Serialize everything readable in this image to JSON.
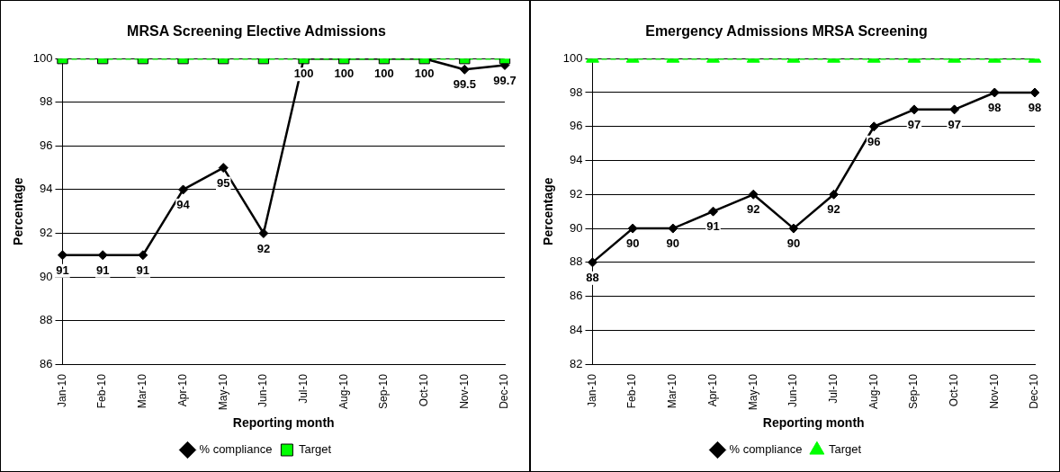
{
  "chart_data": [
    {
      "type": "line",
      "title": "MRSA Screening Elective Admissions",
      "xlabel": "Reporting month",
      "ylabel": "Percentage",
      "categories": [
        "Jan-10",
        "Feb-10",
        "Mar-10",
        "Apr-10",
        "May-10",
        "Jun-10",
        "Jul-10",
        "Aug-10",
        "Sep-10",
        "Oct-10",
        "Nov-10",
        "Dec-10"
      ],
      "series": [
        {
          "name": "% compliance",
          "color": "#000000",
          "marker": "diamond",
          "line_style": "solid",
          "values": [
            91,
            91,
            91,
            94,
            95,
            92,
            100,
            100,
            100,
            100,
            99.5,
            99.7
          ],
          "value_labels": [
            "91",
            "91",
            "91",
            "94",
            "95",
            "92",
            "100",
            "100",
            "100",
            "100",
            "99.5",
            "99.7"
          ]
        },
        {
          "name": "Target",
          "color": "#00ff00",
          "marker": "square",
          "line_style": "dashed",
          "values": [
            100,
            100,
            100,
            100,
            100,
            100,
            100,
            100,
            100,
            100,
            100,
            100
          ]
        }
      ],
      "ylim": [
        86,
        100
      ],
      "yticks": [
        86,
        88,
        90,
        92,
        94,
        96,
        98,
        100
      ],
      "grid": "y",
      "legend": "bottom"
    },
    {
      "type": "line",
      "title": "Emergency Admissions MRSA Screening",
      "xlabel": "Reporting month",
      "ylabel": "Percentage",
      "categories": [
        "Jan-10",
        "Feb-10",
        "Mar-10",
        "Apr-10",
        "May-10",
        "Jun-10",
        "Jul-10",
        "Aug-10",
        "Sep-10",
        "Oct-10",
        "Nov-10",
        "Dec-10"
      ],
      "series": [
        {
          "name": "% compliance",
          "color": "#000000",
          "marker": "diamond",
          "line_style": "solid",
          "values": [
            88,
            90,
            90,
            91,
            92,
            90,
            92,
            96,
            97,
            97,
            98,
            98
          ],
          "value_labels": [
            "88",
            "90",
            "90",
            "91",
            "92",
            "90",
            "92",
            "96",
            "97",
            "97",
            "98",
            "98"
          ]
        },
        {
          "name": "Target",
          "color": "#00ff00",
          "marker": "triangle",
          "line_style": "dashed",
          "values": [
            100,
            100,
            100,
            100,
            100,
            100,
            100,
            100,
            100,
            100,
            100,
            100
          ]
        }
      ],
      "ylim": [
        82,
        100
      ],
      "yticks": [
        82,
        84,
        86,
        88,
        90,
        92,
        94,
        96,
        98,
        100
      ],
      "grid": "y",
      "legend": "bottom"
    }
  ]
}
